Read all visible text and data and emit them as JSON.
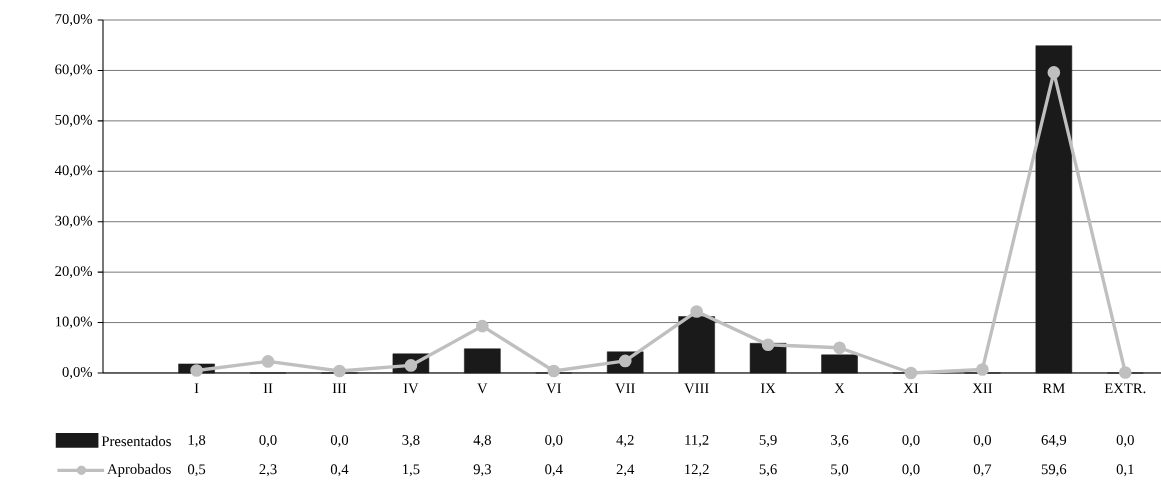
{
  "chart_data": {
    "type": "bar",
    "categories": [
      "I",
      "II",
      "III",
      "IV",
      "V",
      "VI",
      "VII",
      "VIII",
      "IX",
      "X",
      "XI",
      "XII",
      "RM",
      "EXTR."
    ],
    "series": [
      {
        "name": "Presentados",
        "color": "#1a1a1a",
        "values": [
          1.8,
          0.0,
          0.0,
          3.8,
          4.8,
          0.0,
          4.2,
          11.2,
          5.9,
          3.6,
          0.0,
          0.0,
          64.9,
          0.0
        ],
        "value_labels": [
          "1,8",
          "0,0",
          "0,0",
          "3,8",
          "4,8",
          "0,0",
          "4,2",
          "11,2",
          "5,9",
          "3,6",
          "0,0",
          "0,0",
          "64,9",
          "0,0"
        ]
      },
      {
        "name": "Aprobados",
        "type": "line",
        "color": "#bfbfbf",
        "marker": "circle",
        "line_style": "solid",
        "values": [
          0.5,
          2.3,
          0.4,
          1.5,
          9.3,
          0.4,
          2.4,
          12.2,
          5.6,
          5.0,
          0.0,
          0.7,
          59.6,
          0.1
        ],
        "value_labels": [
          "0,5",
          "2,3",
          "0,4",
          "1,5",
          "9,3",
          "0,4",
          "2,4",
          "12,2",
          "5,6",
          "5,0",
          "0,0",
          "0,7",
          "59,6",
          "0,1"
        ]
      }
    ],
    "ylim": [
      0,
      70
    ],
    "yticks": [
      {
        "value": 0,
        "label": "0,0%"
      },
      {
        "value": 10,
        "label": "10,0%"
      },
      {
        "value": 20,
        "label": "20,0%"
      },
      {
        "value": 30,
        "label": "30,0%"
      },
      {
        "value": 40,
        "label": "40,0%"
      },
      {
        "value": 50,
        "label": "50,0%"
      },
      {
        "value": 60,
        "label": "60,0%"
      },
      {
        "value": 70,
        "label": "70,0%"
      }
    ],
    "grid": "y",
    "legend": "bottom left"
  }
}
